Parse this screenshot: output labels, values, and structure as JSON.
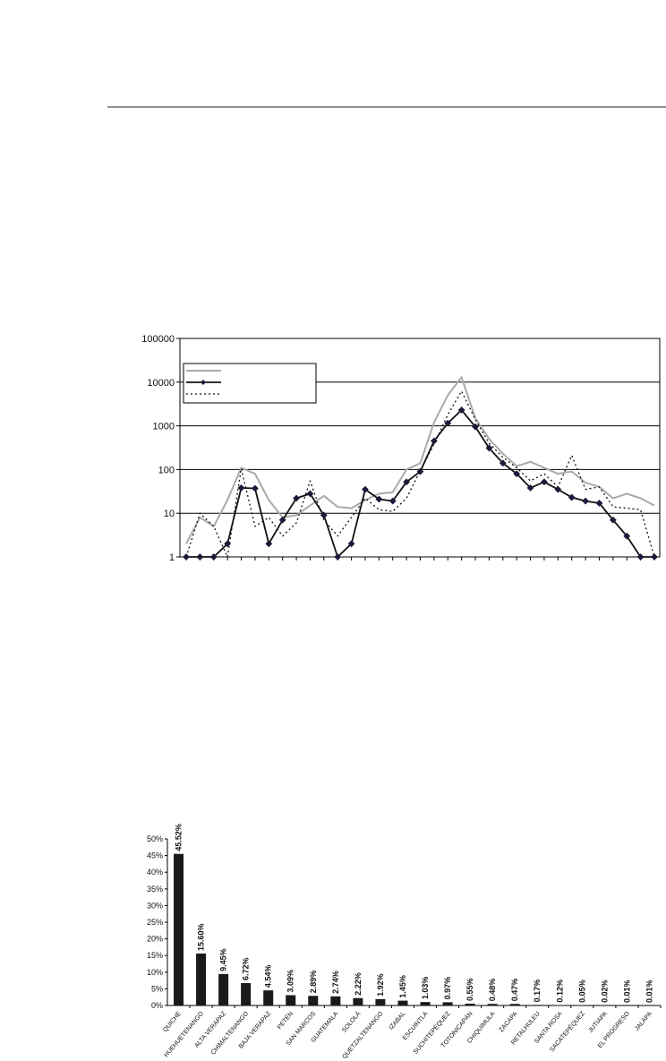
{
  "chart_data": [
    {
      "type": "line",
      "title": "",
      "xlabel": "",
      "ylabel": "",
      "yscale": "log",
      "ylim": [
        1,
        100000
      ],
      "y_ticks": [
        "1",
        "10",
        "100",
        "1000",
        "10000",
        "100000"
      ],
      "grid": true,
      "legend_position": "top-left",
      "legend_entries": 3,
      "series": [
        {
          "style": "solid gray",
          "values": [
            2,
            8,
            5,
            20,
            110,
            80,
            20,
            8,
            9,
            15,
            25,
            14,
            13,
            20,
            28,
            30,
            100,
            140,
            1200,
            5000,
            13000,
            1500,
            500,
            230,
            120,
            150,
            110,
            80,
            90,
            50,
            40,
            22,
            28,
            22,
            15
          ]
        },
        {
          "style": "solid black with diamond markers",
          "values": [
            1,
            1,
            1,
            2,
            38,
            37,
            2,
            7,
            22,
            28,
            9,
            1,
            2,
            35,
            21,
            19,
            52,
            90,
            450,
            1150,
            2300,
            950,
            310,
            140,
            80,
            38,
            52,
            35,
            23,
            19,
            17,
            7,
            3,
            1,
            1
          ]
        },
        {
          "style": "dotted black",
          "values": [
            1,
            10,
            5,
            1,
            105,
            5,
            8,
            3,
            6,
            55,
            7,
            3,
            8,
            22,
            12,
            11,
            22,
            95,
            380,
            1800,
            6200,
            1400,
            400,
            190,
            110,
            55,
            80,
            40,
            210,
            35,
            40,
            14,
            13,
            12,
            1
          ]
        }
      ]
    },
    {
      "type": "bar",
      "title": "",
      "ylim": [
        0,
        50
      ],
      "y_ticks": [
        "0%",
        "5%",
        "10%",
        "15%",
        "20%",
        "25%",
        "30%",
        "35%",
        "40%",
        "45%",
        "50%"
      ],
      "grid": false,
      "categories": [
        "QUICHÉ",
        "HUEHUETENANGO",
        "ALTA VERAPAZ",
        "CHIMALTENANGO",
        "BAJA VERAPAZ",
        "PETÉN",
        "SAN MARCOS",
        "GUATEMALA",
        "SOLOLÁ",
        "QUETZALTENANGO",
        "IZABAL",
        "ESCUINTLA",
        "SUCHITEPÉQUEZ",
        "TOTONICAPÁN",
        "CHIQUIMULA",
        "ZACAPA",
        "RETALHULEU",
        "SANTA ROSA",
        "SACATEPÉQUEZ",
        "JUTIAPA",
        "EL PROGRESO",
        "JALAPA"
      ],
      "values": [
        45.52,
        15.6,
        9.45,
        6.72,
        4.54,
        3.09,
        2.89,
        2.74,
        2.22,
        1.92,
        1.45,
        1.03,
        0.97,
        0.55,
        0.48,
        0.47,
        0.17,
        0.12,
        0.05,
        0.02,
        0.01,
        0.01
      ],
      "value_labels": [
        "45.52%",
        "15.60%",
        "9.45%",
        "6.72%",
        "4.54%",
        "3.09%",
        "2.89%",
        "2.74%",
        "2.22%",
        "1.92%",
        "1.45%",
        "1.03%",
        "0.97%",
        "0.55%",
        "0.48%",
        "0.47%",
        "0.17%",
        "0.12%",
        "0.05%",
        "0.02%",
        "0.01%",
        "0.01%"
      ]
    }
  ]
}
